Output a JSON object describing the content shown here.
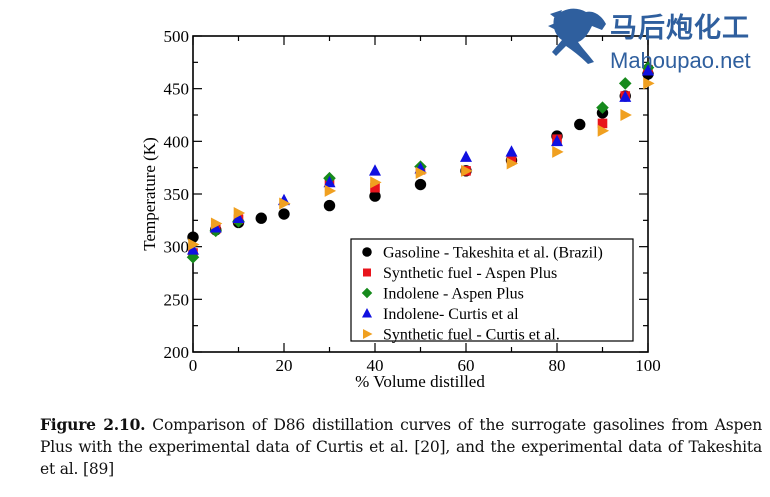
{
  "chart_data": {
    "type": "scatter",
    "title": "",
    "xlabel": "% Volume distilled",
    "ylabel": "Temperature (K)",
    "xlim": [
      0,
      100
    ],
    "ylim": [
      200,
      500
    ],
    "x_ticks": [
      0,
      20,
      40,
      60,
      80,
      100
    ],
    "y_ticks": [
      200,
      250,
      300,
      350,
      400,
      450,
      500
    ],
    "x_tick_labels": [
      "0",
      "20",
      "40",
      "60",
      "80",
      "100"
    ],
    "y_tick_labels": [
      "200",
      "250",
      "300",
      "350",
      "400",
      "450",
      "500"
    ],
    "grid": false,
    "legend_position": "bottom-right",
    "series": [
      {
        "name": "Gasoline - Takeshita et al. (Brazil)",
        "marker": "circle",
        "color": "#000000",
        "x": [
          0,
          5,
          10,
          15,
          20,
          30,
          40,
          50,
          60,
          70,
          80,
          85,
          90,
          95,
          100
        ],
        "y": [
          309,
          316,
          323,
          327,
          331,
          339,
          348,
          359,
          372,
          382,
          405,
          416,
          427,
          443,
          464
        ]
      },
      {
        "name": "Synthetic fuel - Aspen Plus",
        "marker": "square",
        "color": "#e8141c",
        "x": [
          0,
          5,
          10,
          30,
          40,
          50,
          60,
          70,
          80,
          90,
          95,
          100
        ],
        "y": [
          294,
          317,
          326,
          362,
          356,
          373,
          372,
          383,
          402,
          417,
          443,
          468
        ]
      },
      {
        "name": "Indolene - Aspen Plus",
        "marker": "diamond",
        "color": "#168a1c",
        "x": [
          0,
          5,
          10,
          30,
          50,
          90,
          95,
          100
        ],
        "y": [
          290,
          315,
          324,
          365,
          376,
          432,
          455,
          470
        ]
      },
      {
        "name": "Indolene- Curtis et al",
        "marker": "triangle-up",
        "color": "#1010e0",
        "x": [
          0,
          5,
          10,
          20,
          30,
          40,
          50,
          60,
          70,
          80,
          95,
          100
        ],
        "y": [
          297,
          318,
          327,
          344,
          361,
          372,
          374,
          385,
          390,
          400,
          442,
          467
        ]
      },
      {
        "name": "Synthetic fuel - Curtis et al.",
        "marker": "triangle-right",
        "color": "#f0a020",
        "x": [
          0,
          5,
          10,
          20,
          30,
          40,
          50,
          60,
          70,
          80,
          90,
          95,
          100
        ],
        "y": [
          302,
          322,
          332,
          341,
          353,
          361,
          370,
          372,
          379,
          390,
          410,
          425,
          455
        ]
      }
    ]
  },
  "caption": {
    "label": "Figure 2.10.",
    "text": "Comparison of D86 distillation curves of the surrogate gasolines from Aspen Plus with the experimental data of Curtis et al. [20], and the experimental data of Takeshita et al. [89]"
  },
  "watermark": {
    "chinese": "马后炮化工",
    "site": "Mahoupao.net",
    "icon": "horse-icon",
    "color": "#2f5f9e"
  }
}
